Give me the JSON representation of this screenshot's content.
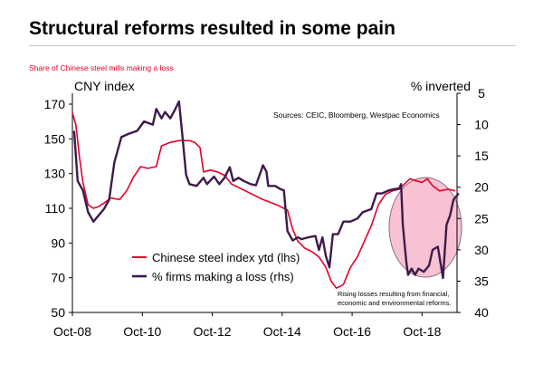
{
  "header": {
    "title": "Structural reforms resulted in some pain",
    "subtitle": "Share of Chinese steel mills  making  a loss"
  },
  "colors": {
    "steel_index": "#e4002b",
    "firms_loss": "#3d1a4a",
    "highlight_fill": "#f28fb0",
    "highlight_stroke": "#8a6a80"
  },
  "chart_data": {
    "type": "line",
    "title": "",
    "left_axis_label": "CNY index",
    "right_axis_label": "% inverted",
    "sources": "Sources: CEIC, Bloomberg,  Westpac Economics",
    "annotation": [
      "Rising losses resulting from financial,",
      "economic and environmental reforms."
    ],
    "x_ticks": [
      "Oct-08",
      "Oct-10",
      "Oct-12",
      "Oct-14",
      "Oct-16",
      "Oct-18"
    ],
    "x_range": [
      2008.75,
      2019.75
    ],
    "left_ylim": [
      50,
      170
    ],
    "left_ticks": [
      50,
      70,
      90,
      110,
      130,
      150,
      170
    ],
    "right_ylim": [
      5,
      40
    ],
    "right_inverted": true,
    "right_ticks": [
      5,
      10,
      15,
      20,
      25,
      30,
      35,
      40
    ],
    "legend": [
      "Chinese steel index ytd  (lhs)",
      "% firms making a loss (rhs)"
    ],
    "series": [
      {
        "name": "Chinese steel index ytd  (lhs)",
        "axis": "left",
        "points": [
          [
            2008.75,
            165
          ],
          [
            2008.85,
            158
          ],
          [
            2008.95,
            140
          ],
          [
            2009.05,
            125
          ],
          [
            2009.2,
            112
          ],
          [
            2009.35,
            110
          ],
          [
            2009.5,
            111
          ],
          [
            2009.65,
            113
          ],
          [
            2009.85,
            116
          ],
          [
            2010.1,
            115
          ],
          [
            2010.3,
            120
          ],
          [
            2010.5,
            128
          ],
          [
            2010.7,
            134
          ],
          [
            2010.9,
            133
          ],
          [
            2011.15,
            134
          ],
          [
            2011.3,
            146
          ],
          [
            2011.55,
            148
          ],
          [
            2011.8,
            149
          ],
          [
            2012.1,
            149
          ],
          [
            2012.25,
            148
          ],
          [
            2012.4,
            145
          ],
          [
            2012.5,
            131
          ],
          [
            2012.7,
            132
          ],
          [
            2012.9,
            131
          ],
          [
            2013.1,
            129
          ],
          [
            2013.3,
            124
          ],
          [
            2013.6,
            121
          ],
          [
            2013.9,
            118
          ],
          [
            2014.2,
            115
          ],
          [
            2014.6,
            112
          ],
          [
            2014.8,
            110
          ],
          [
            2014.9,
            109
          ],
          [
            2015.05,
            98
          ],
          [
            2015.2,
            91
          ],
          [
            2015.4,
            87
          ],
          [
            2015.6,
            85
          ],
          [
            2015.8,
            82
          ],
          [
            2016.0,
            76
          ],
          [
            2016.15,
            68
          ],
          [
            2016.3,
            64
          ],
          [
            2016.5,
            66
          ],
          [
            2016.7,
            76
          ],
          [
            2016.9,
            82
          ],
          [
            2017.1,
            91
          ],
          [
            2017.3,
            100
          ],
          [
            2017.5,
            112
          ],
          [
            2017.7,
            118
          ],
          [
            2017.9,
            120
          ],
          [
            2018.1,
            121
          ],
          [
            2018.4,
            127
          ],
          [
            2018.55,
            126
          ],
          [
            2018.75,
            125
          ],
          [
            2018.9,
            127
          ],
          [
            2019.05,
            123
          ],
          [
            2019.25,
            120
          ],
          [
            2019.5,
            121
          ],
          [
            2019.7,
            120
          ]
        ]
      },
      {
        "name": "% firms making a loss (rhs)",
        "axis": "right",
        "points": [
          [
            2008.8,
            11
          ],
          [
            2008.9,
            19
          ],
          [
            2009.05,
            20.5
          ],
          [
            2009.2,
            24
          ],
          [
            2009.35,
            25.5
          ],
          [
            2009.5,
            24.5
          ],
          [
            2009.65,
            23.5
          ],
          [
            2009.8,
            22
          ],
          [
            2009.95,
            16
          ],
          [
            2010.15,
            12
          ],
          [
            2010.35,
            11.5
          ],
          [
            2010.6,
            11
          ],
          [
            2010.8,
            9.5
          ],
          [
            2010.95,
            9.8
          ],
          [
            2011.05,
            10
          ],
          [
            2011.15,
            7.5
          ],
          [
            2011.3,
            9
          ],
          [
            2011.4,
            8
          ],
          [
            2011.55,
            9
          ],
          [
            2011.65,
            8
          ],
          [
            2011.8,
            6.3
          ],
          [
            2011.9,
            12
          ],
          [
            2012.0,
            18
          ],
          [
            2012.1,
            19.5
          ],
          [
            2012.3,
            19.8
          ],
          [
            2012.5,
            18.5
          ],
          [
            2012.6,
            19.5
          ],
          [
            2012.8,
            18.3
          ],
          [
            2012.95,
            19.5
          ],
          [
            2013.1,
            18.5
          ],
          [
            2013.25,
            16.8
          ],
          [
            2013.35,
            19
          ],
          [
            2013.5,
            18.5
          ],
          [
            2013.65,
            19
          ],
          [
            2013.85,
            19.5
          ],
          [
            2014.0,
            19.7
          ],
          [
            2014.2,
            16.5
          ],
          [
            2014.3,
            17.5
          ],
          [
            2014.35,
            19.8
          ],
          [
            2014.55,
            19.8
          ],
          [
            2014.7,
            20.3
          ],
          [
            2014.8,
            20.5
          ],
          [
            2014.9,
            27
          ],
          [
            2015.05,
            28.5
          ],
          [
            2015.2,
            28
          ],
          [
            2015.3,
            28.3
          ],
          [
            2015.5,
            28
          ],
          [
            2015.7,
            27.8
          ],
          [
            2015.8,
            30
          ],
          [
            2015.9,
            28
          ],
          [
            2016.0,
            31
          ],
          [
            2016.1,
            32.8
          ],
          [
            2016.2,
            27.5
          ],
          [
            2016.35,
            27.5
          ],
          [
            2016.5,
            25.5
          ],
          [
            2016.7,
            25.5
          ],
          [
            2016.9,
            25
          ],
          [
            2017.05,
            24
          ],
          [
            2017.3,
            23.5
          ],
          [
            2017.45,
            21
          ],
          [
            2017.6,
            21
          ],
          [
            2017.8,
            20.5
          ],
          [
            2017.95,
            20.3
          ],
          [
            2018.1,
            20.2
          ],
          [
            2018.15,
            19.5
          ],
          [
            2018.2,
            26
          ],
          [
            2018.3,
            32
          ],
          [
            2018.35,
            34
          ],
          [
            2018.45,
            33
          ],
          [
            2018.55,
            34
          ],
          [
            2018.65,
            33
          ],
          [
            2018.8,
            33.5
          ],
          [
            2018.95,
            32.5
          ],
          [
            2019.05,
            30
          ],
          [
            2019.2,
            29.5
          ],
          [
            2019.35,
            34.5
          ],
          [
            2019.45,
            26
          ],
          [
            2019.55,
            24.5
          ],
          [
            2019.65,
            22
          ],
          [
            2019.72,
            21.5
          ],
          [
            2019.8,
            21
          ]
        ]
      }
    ]
  }
}
